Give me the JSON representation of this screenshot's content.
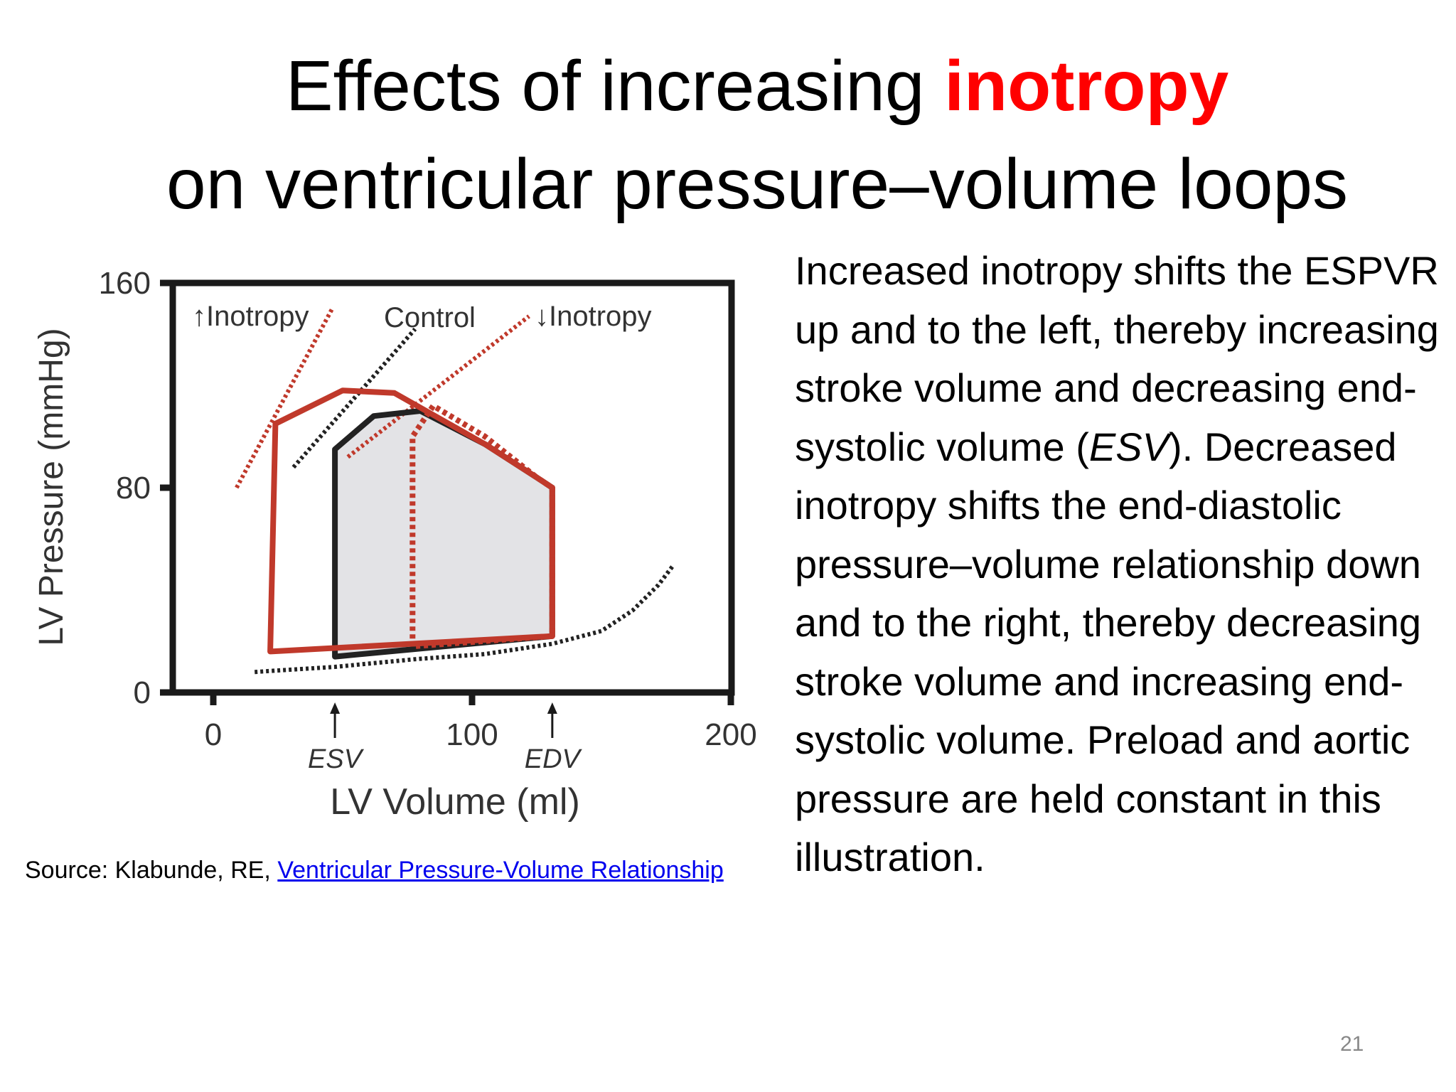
{
  "slide": {
    "title_part1": "Effects of increasing ",
    "title_accent": "inotropy",
    "title_line2": "on ventricular pressure–volume loops",
    "accent_color": "#ff0000",
    "page_number": "21"
  },
  "source": {
    "prefix": "Source: Klabunde, RE, ",
    "link_text": "Ventricular Pressure-Volume Relationship"
  },
  "body_text": {
    "p1a": "Increased inotropy shifts the ESPVR up and to the left, thereby increasing stroke volume and decreasing end-systolic volume (",
    "p1_esv": "ESV",
    "p1b": "). Decreased inotropy shifts the end-diastolic pressure–volume relationship down and to the right, thereby decreasing stroke volume and increasing end-systolic volume. Preload and aortic pressure are held constant in this illustration."
  },
  "chart_data": {
    "type": "line",
    "ylabel": "LV Pressure (mmHg)",
    "xlabel": "LV Volume (ml)",
    "xlim": [
      0,
      200
    ],
    "ylim": [
      0,
      160
    ],
    "x_ticks": [
      "0",
      "100",
      "200"
    ],
    "y_ticks": [
      "0",
      "80",
      "160"
    ],
    "markers": [
      {
        "label": "ESV",
        "x": 47
      },
      {
        "label": "EDV",
        "x": 131
      }
    ],
    "line_labels": [
      "↑Inotropy",
      "Control",
      "↓Inotropy"
    ],
    "colors": {
      "control": "#222222",
      "inotropy": "#c0392b",
      "fill": "#e3e3e6"
    },
    "espvr_lines": [
      {
        "name": "↑Inotropy",
        "points": [
          [
            9,
            80
          ],
          [
            46,
            150
          ]
        ]
      },
      {
        "name": "Control",
        "points": [
          [
            31,
            88
          ],
          [
            78,
            142
          ]
        ]
      },
      {
        "name": "↓Inotropy",
        "points": [
          [
            52,
            92
          ],
          [
            122,
            147
          ]
        ]
      }
    ],
    "edpvr": [
      [
        16,
        8
      ],
      [
        47,
        10
      ],
      [
        78,
        13
      ],
      [
        105,
        15
      ],
      [
        131,
        19
      ],
      [
        150,
        24
      ],
      [
        162,
        32
      ],
      [
        172,
        42
      ],
      [
        178,
        50
      ]
    ],
    "loops": [
      {
        "name": "Control",
        "style": "solid-black",
        "points": [
          [
            47,
            14
          ],
          [
            47,
            95
          ],
          [
            62,
            108
          ],
          [
            80,
            110
          ],
          [
            105,
            97
          ],
          [
            125,
            84
          ],
          [
            131,
            80
          ],
          [
            131,
            22
          ],
          [
            47,
            14
          ]
        ]
      },
      {
        "name": "↑Inotropy",
        "style": "solid-red",
        "points": [
          [
            22,
            16
          ],
          [
            24,
            105
          ],
          [
            50,
            118
          ],
          [
            70,
            117
          ],
          [
            105,
            97
          ],
          [
            125,
            84
          ],
          [
            131,
            80
          ],
          [
            131,
            22
          ],
          [
            22,
            16
          ]
        ]
      },
      {
        "name": "↓Inotropy",
        "style": "dotted-red",
        "points": [
          [
            77,
            18
          ],
          [
            77,
            100
          ],
          [
            85,
            112
          ],
          [
            105,
            100
          ],
          [
            125,
            84
          ],
          [
            131,
            80
          ],
          [
            131,
            22
          ],
          [
            77,
            18
          ]
        ]
      }
    ]
  }
}
